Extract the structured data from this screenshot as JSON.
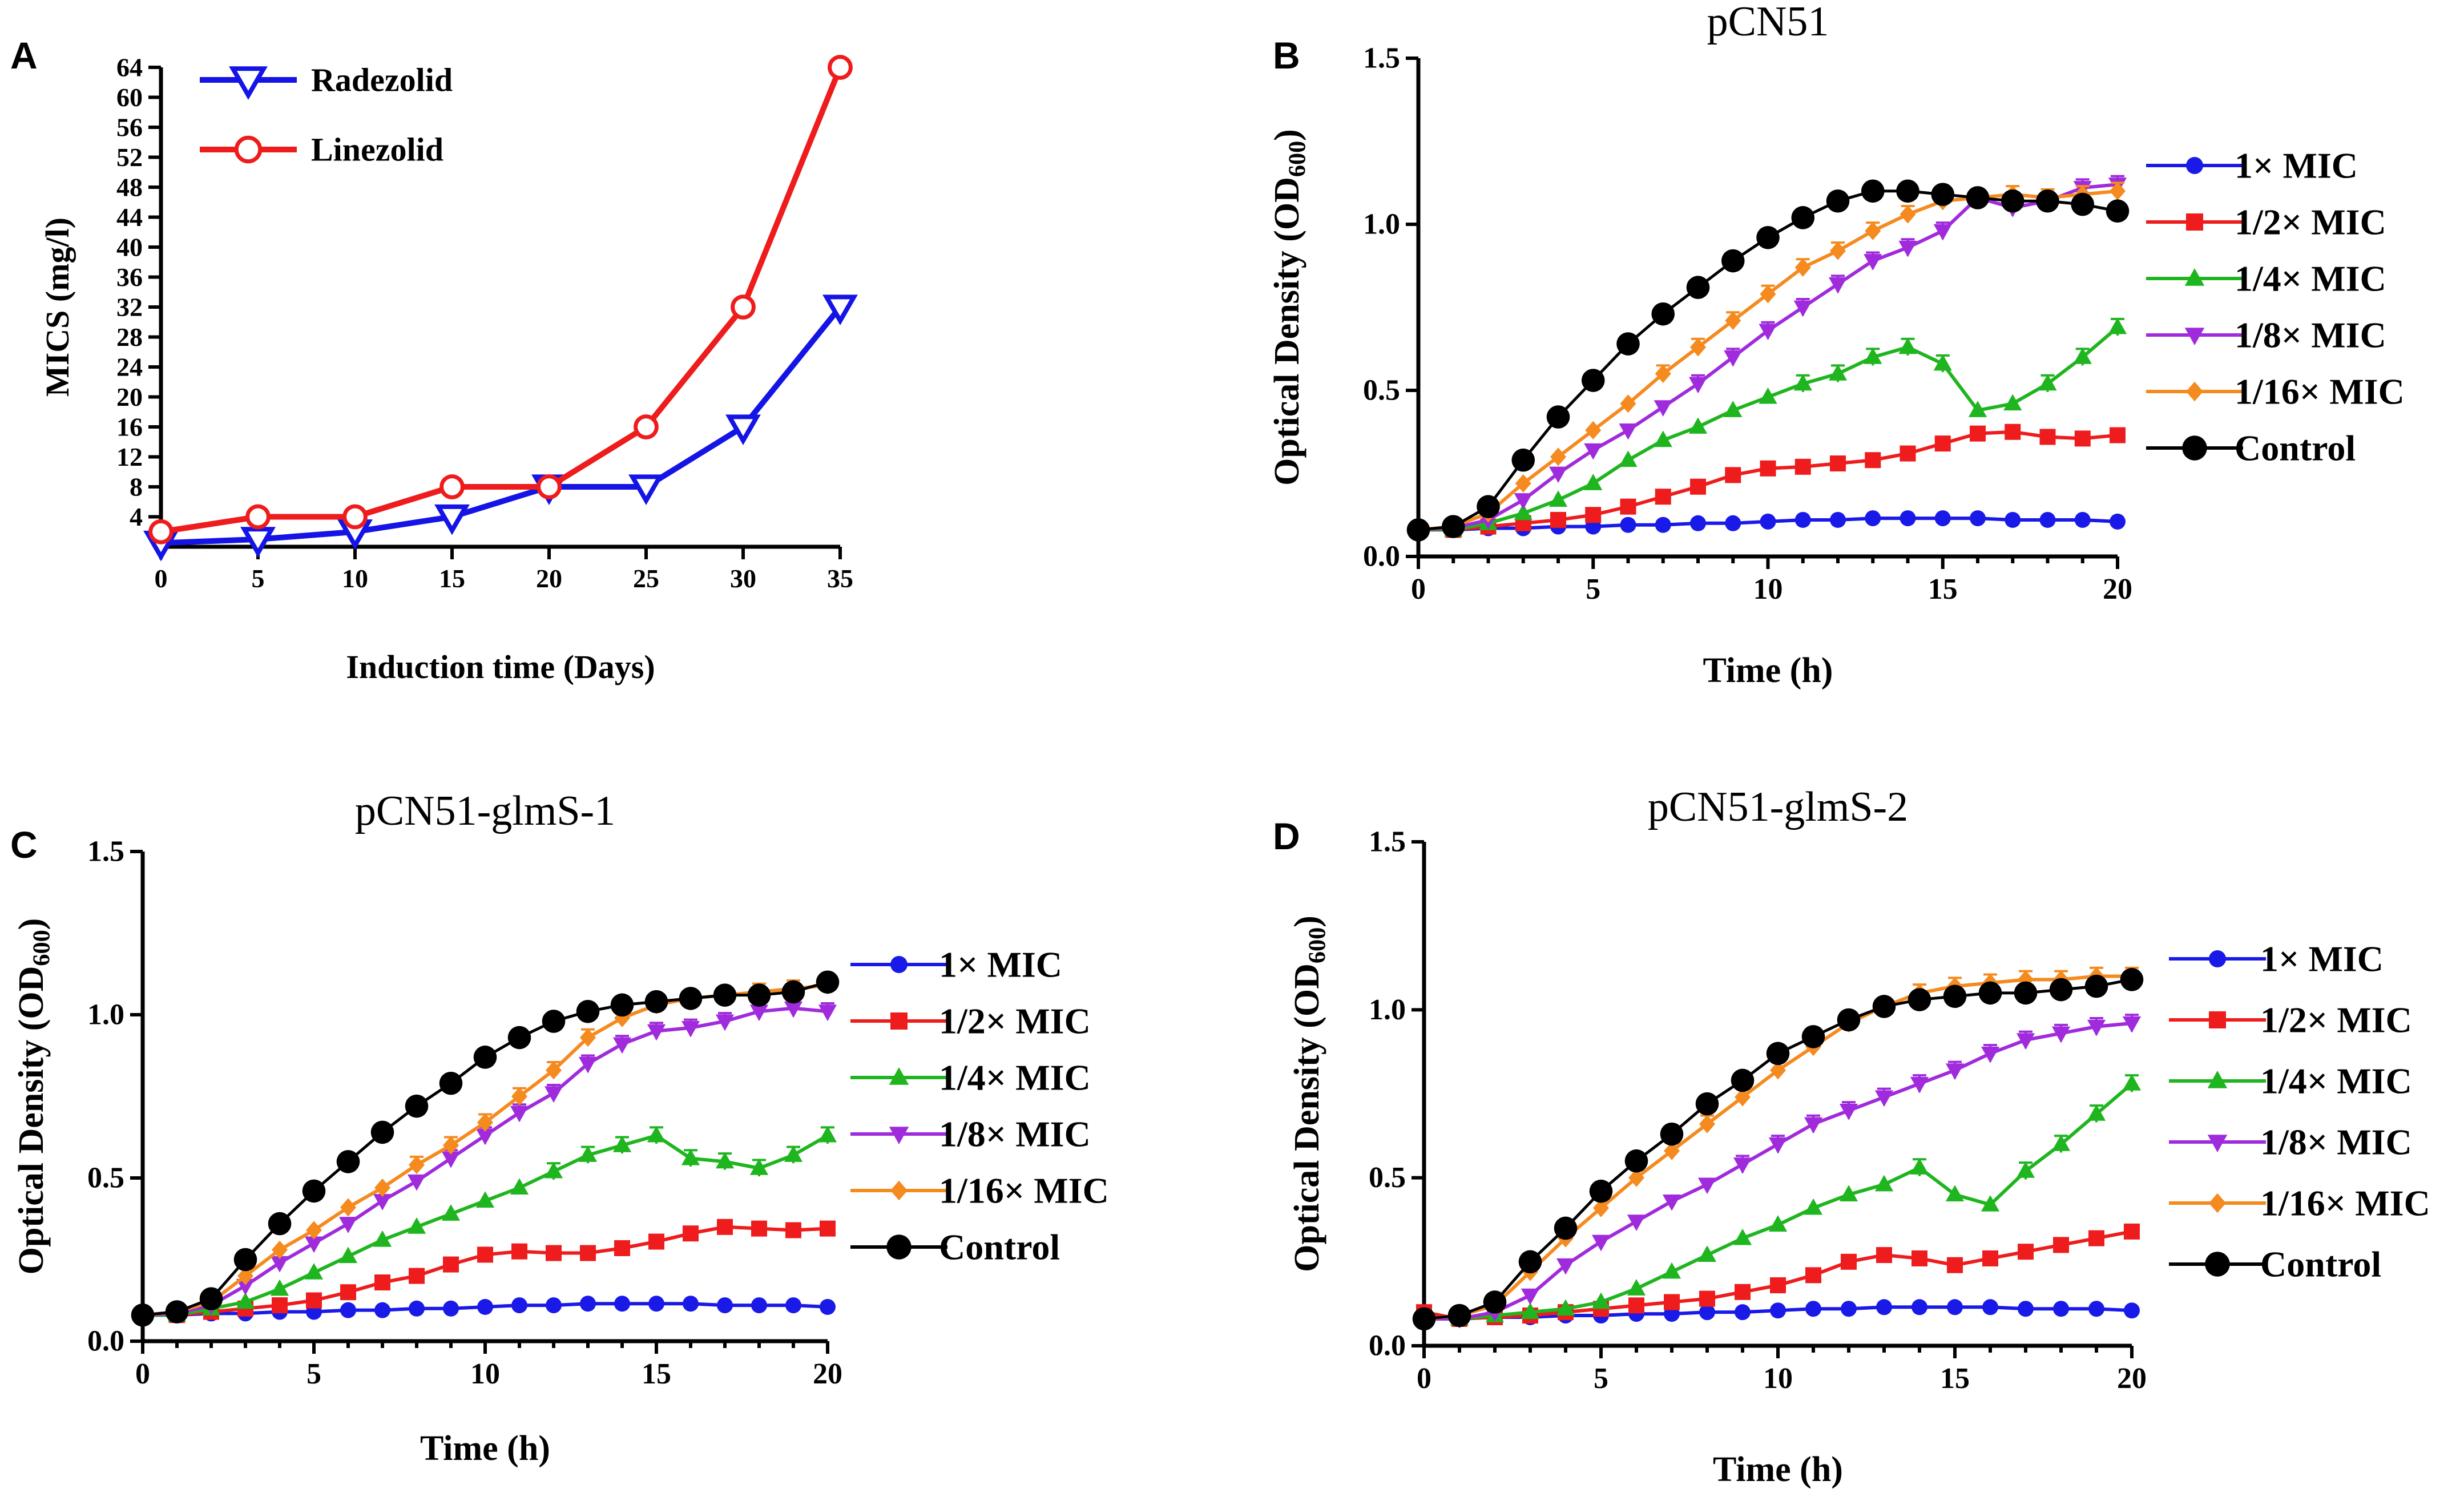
{
  "chart_data": [
    {
      "panel": "A",
      "type": "line",
      "title": "",
      "xlabel": "Induction time (Days)",
      "ylabel": "MICS (mg/l)",
      "xlim": [
        0,
        35
      ],
      "ylim": [
        0,
        64
      ],
      "xticks": [
        0,
        5,
        10,
        15,
        20,
        25,
        30,
        35
      ],
      "yticks": [
        4,
        8,
        12,
        16,
        20,
        24,
        28,
        32,
        36,
        40,
        44,
        48,
        52,
        56,
        60,
        64
      ],
      "x": [
        0,
        5,
        10,
        15,
        20,
        25,
        30,
        35
      ],
      "legend_position": "top-left",
      "series": [
        {
          "name": "Radezolid",
          "color": "#1414e6",
          "marker": "triangle-down-open",
          "values": [
            0.5,
            1,
            2,
            4,
            8,
            8,
            16,
            32
          ]
        },
        {
          "name": "Linezolid",
          "color": "#ee1c1c",
          "marker": "circle-open",
          "values": [
            2,
            4,
            4,
            8,
            8,
            16,
            32,
            64
          ]
        }
      ]
    },
    {
      "panel": "B",
      "type": "line",
      "title": "pCN51",
      "xlabel": "Time (h)",
      "ylabel": "Optical Density (OD",
      "ylabel_sub": "600",
      "ylabel_end": ")",
      "xlim": [
        0,
        20
      ],
      "ylim": [
        0,
        1.5
      ],
      "xticks": [
        0,
        5,
        10,
        15,
        20
      ],
      "yticks": [
        "0.0",
        "0.5",
        "1.0",
        "1.5"
      ],
      "x": [
        0,
        1,
        2,
        3,
        4,
        5,
        6,
        7,
        8,
        9,
        10,
        11,
        12,
        13,
        14,
        15,
        16,
        17,
        18,
        19,
        20
      ],
      "legend_position": "right",
      "series": [
        {
          "name": "1× MIC",
          "color": "#1a1ae8",
          "marker": "circle",
          "values": [
            0.08,
            0.08,
            0.085,
            0.085,
            0.09,
            0.09,
            0.095,
            0.095,
            0.1,
            0.1,
            0.105,
            0.11,
            0.11,
            0.115,
            0.115,
            0.115,
            0.115,
            0.11,
            0.11,
            0.11,
            0.105
          ]
        },
        {
          "name": "1/2× MIC",
          "color": "#ee1c1c",
          "marker": "square",
          "values": [
            0.08,
            0.08,
            0.09,
            0.1,
            0.11,
            0.125,
            0.15,
            0.18,
            0.21,
            0.245,
            0.265,
            0.27,
            0.28,
            0.29,
            0.31,
            0.34,
            0.37,
            0.375,
            0.36,
            0.355,
            0.365
          ]
        },
        {
          "name": "1/4× MIC",
          "color": "#1fb51f",
          "marker": "triangle-up",
          "values": [
            0.08,
            0.08,
            0.1,
            0.13,
            0.17,
            0.22,
            0.29,
            0.35,
            0.39,
            0.44,
            0.48,
            0.52,
            0.55,
            0.6,
            0.63,
            0.58,
            0.44,
            0.46,
            0.52,
            0.6,
            0.69
          ]
        },
        {
          "name": "1/8× MIC",
          "color": "#a02bdc",
          "marker": "triangle-down",
          "values": [
            0.08,
            0.085,
            0.11,
            0.17,
            0.25,
            0.32,
            0.38,
            0.45,
            0.52,
            0.6,
            0.68,
            0.75,
            0.82,
            0.89,
            0.93,
            0.98,
            1.08,
            1.05,
            1.07,
            1.11,
            1.12
          ]
        },
        {
          "name": "1/16× MIC",
          "color": "#f58a1f",
          "marker": "diamond",
          "values": [
            0.08,
            0.09,
            0.13,
            0.22,
            0.3,
            0.38,
            0.46,
            0.55,
            0.63,
            0.71,
            0.79,
            0.87,
            0.92,
            0.98,
            1.03,
            1.07,
            1.08,
            1.09,
            1.08,
            1.09,
            1.1
          ]
        },
        {
          "name": "Control",
          "color": "#000000",
          "marker": "circle-large",
          "values": [
            0.08,
            0.09,
            0.15,
            0.29,
            0.42,
            0.53,
            0.64,
            0.73,
            0.81,
            0.89,
            0.96,
            1.02,
            1.07,
            1.1,
            1.1,
            1.09,
            1.08,
            1.07,
            1.07,
            1.06,
            1.04
          ]
        }
      ]
    },
    {
      "panel": "C",
      "type": "line",
      "title": "pCN51-glmS-1",
      "xlabel": "Time (h)",
      "ylabel": "Optical Density (OD",
      "ylabel_sub": "600",
      "ylabel_end": ")",
      "xlim": [
        0,
        20
      ],
      "ylim": [
        0,
        1.5
      ],
      "xticks": [
        0,
        5,
        10,
        15,
        20
      ],
      "yticks": [
        "0.0",
        "0.5",
        "1.0",
        "1.5"
      ],
      "x": [
        0,
        1,
        2,
        3,
        4,
        5,
        6,
        7,
        8,
        9,
        10,
        11,
        12,
        13,
        14,
        15,
        16,
        17,
        18,
        19,
        20
      ],
      "legend_position": "right",
      "series": [
        {
          "name": "1× MIC",
          "color": "#1a1ae8",
          "marker": "circle",
          "values": [
            0.08,
            0.08,
            0.085,
            0.085,
            0.09,
            0.09,
            0.095,
            0.095,
            0.1,
            0.1,
            0.105,
            0.11,
            0.11,
            0.115,
            0.115,
            0.115,
            0.115,
            0.11,
            0.11,
            0.11,
            0.105
          ]
        },
        {
          "name": "1/2× MIC",
          "color": "#ee1c1c",
          "marker": "square",
          "values": [
            0.08,
            0.08,
            0.09,
            0.1,
            0.11,
            0.125,
            0.15,
            0.18,
            0.2,
            0.235,
            0.265,
            0.275,
            0.27,
            0.27,
            0.285,
            0.305,
            0.33,
            0.35,
            0.345,
            0.34,
            0.345
          ]
        },
        {
          "name": "1/4× MIC",
          "color": "#1fb51f",
          "marker": "triangle-up",
          "values": [
            0.08,
            0.08,
            0.1,
            0.12,
            0.16,
            0.21,
            0.26,
            0.31,
            0.35,
            0.39,
            0.43,
            0.47,
            0.52,
            0.57,
            0.6,
            0.63,
            0.56,
            0.55,
            0.53,
            0.57,
            0.63
          ]
        },
        {
          "name": "1/8× MIC",
          "color": "#a02bdc",
          "marker": "triangle-down",
          "values": [
            0.08,
            0.085,
            0.11,
            0.17,
            0.24,
            0.3,
            0.36,
            0.43,
            0.49,
            0.56,
            0.63,
            0.7,
            0.76,
            0.85,
            0.91,
            0.95,
            0.96,
            0.98,
            1.01,
            1.02,
            1.01
          ]
        },
        {
          "name": "1/16× MIC",
          "color": "#f58a1f",
          "marker": "diamond",
          "values": [
            0.08,
            0.09,
            0.12,
            0.2,
            0.28,
            0.34,
            0.41,
            0.47,
            0.54,
            0.6,
            0.67,
            0.75,
            0.83,
            0.93,
            0.99,
            1.03,
            1.05,
            1.06,
            1.07,
            1.08,
            1.09
          ]
        },
        {
          "name": "Control",
          "color": "#000000",
          "marker": "circle-large",
          "values": [
            0.08,
            0.09,
            0.13,
            0.25,
            0.36,
            0.46,
            0.55,
            0.64,
            0.72,
            0.79,
            0.87,
            0.93,
            0.98,
            1.01,
            1.03,
            1.04,
            1.05,
            1.06,
            1.06,
            1.07,
            1.1
          ]
        }
      ]
    },
    {
      "panel": "D",
      "type": "line",
      "title": "pCN51-glmS-2",
      "xlabel": "Time (h)",
      "ylabel": "Optical Density (OD",
      "ylabel_sub": "600",
      "ylabel_end": ")",
      "xlim": [
        0,
        20
      ],
      "ylim": [
        0,
        1.5
      ],
      "xticks": [
        0,
        5,
        10,
        15,
        20
      ],
      "yticks": [
        "0.0",
        "0.5",
        "1.0",
        "1.5"
      ],
      "x": [
        0,
        1,
        2,
        3,
        4,
        5,
        6,
        7,
        8,
        9,
        10,
        11,
        12,
        13,
        14,
        15,
        16,
        17,
        18,
        19,
        20
      ],
      "legend_position": "right",
      "series": [
        {
          "name": "1× MIC",
          "color": "#1a1ae8",
          "marker": "circle",
          "values": [
            0.08,
            0.08,
            0.085,
            0.085,
            0.09,
            0.09,
            0.095,
            0.095,
            0.1,
            0.1,
            0.105,
            0.11,
            0.11,
            0.115,
            0.115,
            0.115,
            0.115,
            0.11,
            0.11,
            0.11,
            0.105
          ]
        },
        {
          "name": "1/2× MIC",
          "color": "#ee1c1c",
          "marker": "square",
          "values": [
            0.1,
            0.08,
            0.085,
            0.09,
            0.1,
            0.11,
            0.12,
            0.13,
            0.14,
            0.16,
            0.18,
            0.21,
            0.25,
            0.27,
            0.26,
            0.24,
            0.26,
            0.28,
            0.3,
            0.32,
            0.34
          ]
        },
        {
          "name": "1/4× MIC",
          "color": "#1fb51f",
          "marker": "triangle-up",
          "values": [
            0.08,
            0.08,
            0.09,
            0.1,
            0.11,
            0.13,
            0.17,
            0.22,
            0.27,
            0.32,
            0.36,
            0.41,
            0.45,
            0.48,
            0.53,
            0.45,
            0.42,
            0.52,
            0.6,
            0.69,
            0.78
          ]
        },
        {
          "name": "1/8× MIC",
          "color": "#a02bdc",
          "marker": "triangle-down",
          "values": [
            0.08,
            0.08,
            0.1,
            0.15,
            0.24,
            0.31,
            0.37,
            0.43,
            0.48,
            0.54,
            0.6,
            0.66,
            0.7,
            0.74,
            0.78,
            0.82,
            0.87,
            0.91,
            0.93,
            0.95,
            0.96
          ]
        },
        {
          "name": "1/16× MIC",
          "color": "#f58a1f",
          "marker": "diamond",
          "values": [
            0.08,
            0.09,
            0.12,
            0.22,
            0.32,
            0.41,
            0.5,
            0.58,
            0.66,
            0.74,
            0.82,
            0.89,
            0.96,
            1.01,
            1.05,
            1.07,
            1.08,
            1.09,
            1.09,
            1.1,
            1.1
          ]
        },
        {
          "name": "Control",
          "color": "#000000",
          "marker": "circle-large",
          "values": [
            0.08,
            0.09,
            0.13,
            0.25,
            0.35,
            0.46,
            0.55,
            0.63,
            0.72,
            0.79,
            0.87,
            0.92,
            0.97,
            1.01,
            1.03,
            1.04,
            1.05,
            1.05,
            1.06,
            1.07,
            1.09
          ]
        }
      ]
    }
  ]
}
